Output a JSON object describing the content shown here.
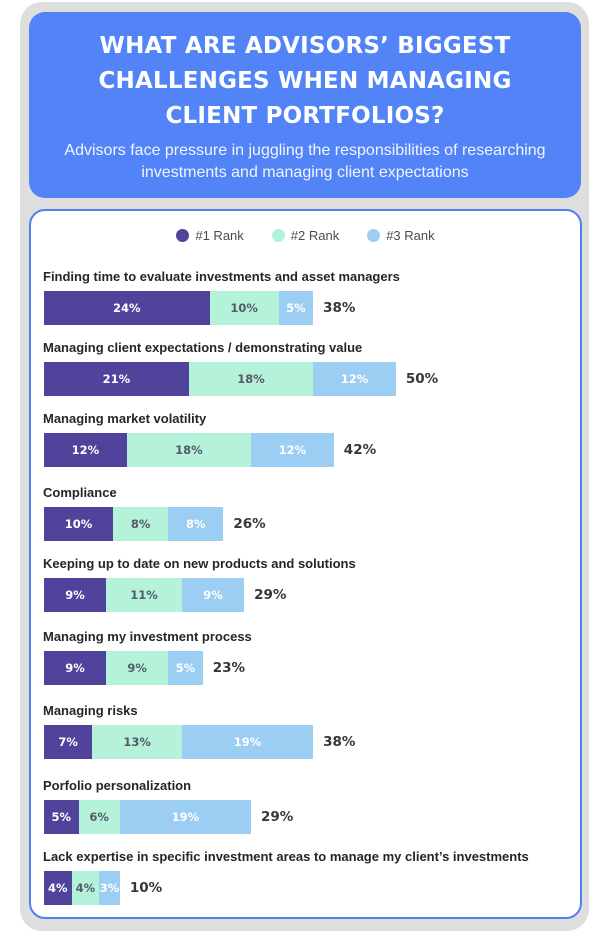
{
  "header": {
    "title": "WHAT ARE ADVISORS’ BIGGEST CHALLENGES WHEN MANAGING CLIENT PORTFOLIOS?",
    "subtitle": "Advisors face pressure in juggling the responsibilities of researching investments and managing client expectations"
  },
  "colors": {
    "rank1": "#50439c",
    "rank2": "#b4f2da",
    "rank3": "#9ccdf3"
  },
  "chart_data": {
    "type": "bar",
    "stacked": true,
    "orientation": "horizontal",
    "unit": "%",
    "legend_position": "top",
    "grid": false,
    "categories": [
      "Finding time to evaluate investments and asset managers",
      "Managing client expectations / demonstrating value",
      "Managing market volatility",
      "Compliance",
      "Keeping up to date on new products and solutions",
      "Managing my investment process",
      "Managing risks",
      "Porfolio personalization",
      "Lack expertise in specific investment areas to manage my client’s investments"
    ],
    "series": [
      {
        "name": "#1 Rank",
        "values": [
          24,
          21,
          12,
          10,
          9,
          9,
          7,
          5,
          4
        ]
      },
      {
        "name": "#2 Rank",
        "values": [
          10,
          18,
          18,
          8,
          11,
          9,
          13,
          6,
          4
        ]
      },
      {
        "name": "#3 Rank",
        "values": [
          5,
          12,
          12,
          8,
          9,
          5,
          19,
          19,
          3
        ]
      }
    ],
    "totals": [
      38,
      50,
      42,
      26,
      29,
      23,
      38,
      29,
      10
    ]
  }
}
